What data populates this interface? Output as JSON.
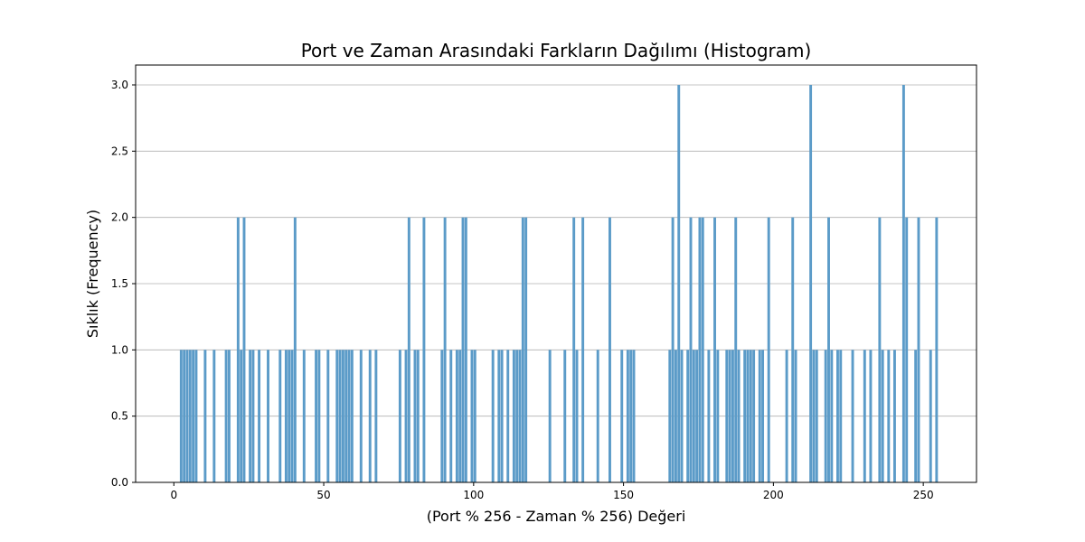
{
  "chart_data": {
    "type": "bar",
    "title": "Port ve Zaman Arasındaki Farkların Dağılımı (Histogram)",
    "xlabel": "(Port % 256 - Zaman % 256) Değeri",
    "ylabel": "Sıklık (Frequency)",
    "xlim": [
      -12.75,
      267.75
    ],
    "ylim": [
      0,
      3.15
    ],
    "x_ticks": [
      0,
      50,
      100,
      150,
      200,
      250
    ],
    "y_ticks": [
      0.0,
      0.5,
      1.0,
      1.5,
      2.0,
      2.5,
      3.0
    ],
    "y_tick_labels": [
      "0.0",
      "0.5",
      "1.0",
      "1.5",
      "2.0",
      "2.5",
      "3.0"
    ],
    "grid": "y",
    "bar_color": "#5b9bc8",
    "bin_width": 1,
    "bins": [
      {
        "x": 2,
        "count": 1
      },
      {
        "x": 3,
        "count": 1
      },
      {
        "x": 4,
        "count": 1
      },
      {
        "x": 5,
        "count": 1
      },
      {
        "x": 6,
        "count": 1
      },
      {
        "x": 7,
        "count": 1
      },
      {
        "x": 10,
        "count": 1
      },
      {
        "x": 13,
        "count": 1
      },
      {
        "x": 17,
        "count": 1
      },
      {
        "x": 18,
        "count": 1
      },
      {
        "x": 21,
        "count": 2
      },
      {
        "x": 22,
        "count": 1
      },
      {
        "x": 23,
        "count": 2
      },
      {
        "x": 25,
        "count": 1
      },
      {
        "x": 26,
        "count": 1
      },
      {
        "x": 28,
        "count": 1
      },
      {
        "x": 31,
        "count": 1
      },
      {
        "x": 35,
        "count": 1
      },
      {
        "x": 37,
        "count": 1
      },
      {
        "x": 38,
        "count": 1
      },
      {
        "x": 39,
        "count": 1
      },
      {
        "x": 40,
        "count": 2
      },
      {
        "x": 43,
        "count": 1
      },
      {
        "x": 47,
        "count": 1
      },
      {
        "x": 48,
        "count": 1
      },
      {
        "x": 51,
        "count": 1
      },
      {
        "x": 54,
        "count": 1
      },
      {
        "x": 55,
        "count": 1
      },
      {
        "x": 56,
        "count": 1
      },
      {
        "x": 57,
        "count": 1
      },
      {
        "x": 58,
        "count": 1
      },
      {
        "x": 59,
        "count": 1
      },
      {
        "x": 62,
        "count": 1
      },
      {
        "x": 65,
        "count": 1
      },
      {
        "x": 67,
        "count": 1
      },
      {
        "x": 75,
        "count": 1
      },
      {
        "x": 77,
        "count": 1
      },
      {
        "x": 78,
        "count": 2
      },
      {
        "x": 80,
        "count": 1
      },
      {
        "x": 81,
        "count": 1
      },
      {
        "x": 83,
        "count": 2
      },
      {
        "x": 89,
        "count": 1
      },
      {
        "x": 90,
        "count": 2
      },
      {
        "x": 92,
        "count": 1
      },
      {
        "x": 94,
        "count": 1
      },
      {
        "x": 95,
        "count": 1
      },
      {
        "x": 96,
        "count": 2
      },
      {
        "x": 97,
        "count": 2
      },
      {
        "x": 99,
        "count": 1
      },
      {
        "x": 100,
        "count": 1
      },
      {
        "x": 106,
        "count": 1
      },
      {
        "x": 108,
        "count": 1
      },
      {
        "x": 109,
        "count": 1
      },
      {
        "x": 111,
        "count": 1
      },
      {
        "x": 113,
        "count": 1
      },
      {
        "x": 114,
        "count": 1
      },
      {
        "x": 115,
        "count": 1
      },
      {
        "x": 116,
        "count": 2
      },
      {
        "x": 117,
        "count": 2
      },
      {
        "x": 125,
        "count": 1
      },
      {
        "x": 130,
        "count": 1
      },
      {
        "x": 133,
        "count": 2
      },
      {
        "x": 134,
        "count": 1
      },
      {
        "x": 136,
        "count": 2
      },
      {
        "x": 141,
        "count": 1
      },
      {
        "x": 145,
        "count": 2
      },
      {
        "x": 149,
        "count": 1
      },
      {
        "x": 151,
        "count": 1
      },
      {
        "x": 152,
        "count": 1
      },
      {
        "x": 153,
        "count": 1
      },
      {
        "x": 165,
        "count": 1
      },
      {
        "x": 166,
        "count": 2
      },
      {
        "x": 167,
        "count": 1
      },
      {
        "x": 168,
        "count": 3
      },
      {
        "x": 169,
        "count": 1
      },
      {
        "x": 171,
        "count": 1
      },
      {
        "x": 172,
        "count": 2
      },
      {
        "x": 173,
        "count": 1
      },
      {
        "x": 174,
        "count": 1
      },
      {
        "x": 175,
        "count": 2
      },
      {
        "x": 176,
        "count": 2
      },
      {
        "x": 178,
        "count": 1
      },
      {
        "x": 180,
        "count": 2
      },
      {
        "x": 181,
        "count": 1
      },
      {
        "x": 184,
        "count": 1
      },
      {
        "x": 185,
        "count": 1
      },
      {
        "x": 186,
        "count": 1
      },
      {
        "x": 187,
        "count": 2
      },
      {
        "x": 188,
        "count": 1
      },
      {
        "x": 190,
        "count": 1
      },
      {
        "x": 191,
        "count": 1
      },
      {
        "x": 192,
        "count": 1
      },
      {
        "x": 193,
        "count": 1
      },
      {
        "x": 195,
        "count": 1
      },
      {
        "x": 196,
        "count": 1
      },
      {
        "x": 198,
        "count": 2
      },
      {
        "x": 204,
        "count": 1
      },
      {
        "x": 206,
        "count": 2
      },
      {
        "x": 207,
        "count": 1
      },
      {
        "x": 212,
        "count": 3
      },
      {
        "x": 213,
        "count": 1
      },
      {
        "x": 214,
        "count": 1
      },
      {
        "x": 217,
        "count": 1
      },
      {
        "x": 218,
        "count": 2
      },
      {
        "x": 219,
        "count": 1
      },
      {
        "x": 221,
        "count": 1
      },
      {
        "x": 222,
        "count": 1
      },
      {
        "x": 226,
        "count": 1
      },
      {
        "x": 230,
        "count": 1
      },
      {
        "x": 232,
        "count": 1
      },
      {
        "x": 235,
        "count": 2
      },
      {
        "x": 236,
        "count": 1
      },
      {
        "x": 238,
        "count": 1
      },
      {
        "x": 240,
        "count": 1
      },
      {
        "x": 243,
        "count": 3
      },
      {
        "x": 244,
        "count": 2
      },
      {
        "x": 247,
        "count": 1
      },
      {
        "x": 248,
        "count": 2
      },
      {
        "x": 252,
        "count": 1
      },
      {
        "x": 254,
        "count": 2
      }
    ]
  }
}
